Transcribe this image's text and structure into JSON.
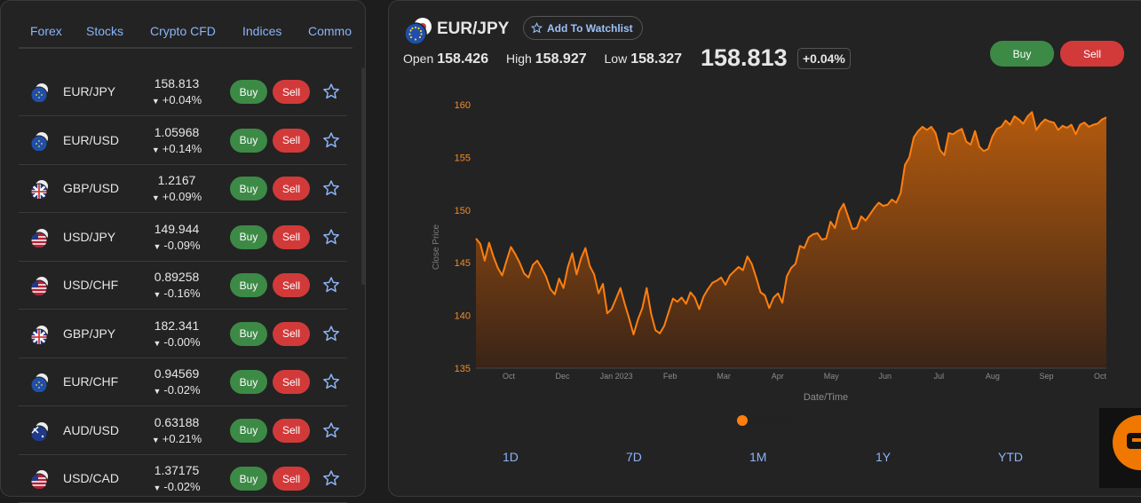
{
  "tabs": [
    "Forex",
    "Stocks",
    "Crypto CFD",
    "Indices",
    "Commo"
  ],
  "instruments": [
    {
      "symbol": "EUR/JPY",
      "price": "158.813",
      "change": "+0.04%",
      "dir": "up",
      "flag": "eu"
    },
    {
      "symbol": "EUR/USD",
      "price": "1.05968",
      "change": "+0.14%",
      "dir": "up",
      "flag": "eu"
    },
    {
      "symbol": "GBP/USD",
      "price": "1.2167",
      "change": "+0.09%",
      "dir": "up",
      "flag": "gb"
    },
    {
      "symbol": "USD/JPY",
      "price": "149.944",
      "change": "-0.09%",
      "dir": "down",
      "flag": "us"
    },
    {
      "symbol": "USD/CHF",
      "price": "0.89258",
      "change": "-0.16%",
      "dir": "down",
      "flag": "us"
    },
    {
      "symbol": "GBP/JPY",
      "price": "182.341",
      "change": "-0.00%",
      "dir": "down",
      "flag": "gb"
    },
    {
      "symbol": "EUR/CHF",
      "price": "0.94569",
      "change": "-0.02%",
      "dir": "down",
      "flag": "eu"
    },
    {
      "symbol": "AUD/USD",
      "price": "0.63188",
      "change": "+0.21%",
      "dir": "up",
      "flag": "au"
    },
    {
      "symbol": "USD/CAD",
      "price": "1.37175",
      "change": "-0.02%",
      "dir": "down",
      "flag": "us"
    }
  ],
  "buttons": {
    "buy": "Buy",
    "sell": "Sell"
  },
  "detail": {
    "pair": "EUR/JPY",
    "watchlist_label": "Add To Watchlist",
    "open_label": "Open",
    "open": "158.426",
    "high_label": "High",
    "high": "158.927",
    "low_label": "Low",
    "low": "158.327",
    "last_price": "158.813",
    "change": "+0.04%",
    "buy_label": "Buy",
    "sell_label": "Sell"
  },
  "range_tabs": [
    "1D",
    "7D",
    "1M",
    "1Y",
    "YTD"
  ],
  "colors": {
    "accent": "#8ab4f8",
    "buy": "#3c8a46",
    "sell": "#d23a3a",
    "series": "#ff7f0e"
  },
  "chart_data": {
    "type": "area",
    "ylabel": "Close Price",
    "xlabel": "Date/Time",
    "legend": "EUR/JPY",
    "ylim": [
      135,
      160
    ],
    "y_ticks": [
      160,
      155,
      150,
      145,
      140,
      135
    ],
    "x_ticks": [
      "Oct",
      "Dec",
      "Jan 2023",
      "Feb",
      "Mar",
      "Apr",
      "May",
      "Jun",
      "Jul",
      "Aug",
      "Sep",
      "Oct"
    ],
    "values": [
      147.3,
      146.8,
      145.2,
      146.9,
      145.6,
      144.5,
      143.8,
      145.2,
      146.5,
      145.8,
      145.0,
      144.0,
      143.6,
      144.8,
      145.2,
      144.5,
      143.7,
      142.5,
      142.0,
      143.5,
      142.6,
      144.6,
      145.9,
      143.9,
      145.4,
      146.4,
      144.7,
      143.9,
      142.1,
      143.0,
      140.2,
      140.6,
      141.6,
      142.6,
      141.1,
      139.7,
      138.2,
      139.6,
      140.7,
      142.6,
      140.2,
      138.6,
      138.3,
      139.0,
      140.3,
      141.6,
      141.3,
      141.7,
      141.1,
      142.2,
      141.7,
      140.6,
      141.8,
      142.5,
      143.1,
      143.3,
      143.6,
      142.9,
      143.8,
      144.2,
      144.6,
      144.3,
      145.6,
      144.9,
      143.6,
      142.2,
      141.9,
      140.7,
      141.7,
      142.1,
      141.2,
      143.7,
      144.5,
      144.9,
      146.6,
      146.4,
      147.4,
      147.7,
      147.8,
      147.2,
      147.3,
      148.9,
      148.3,
      149.9,
      150.6,
      149.4,
      148.2,
      148.3,
      149.4,
      149.0,
      149.6,
      150.2,
      150.7,
      150.4,
      150.5,
      151.0,
      150.7,
      151.6,
      154.3,
      155.0,
      156.9,
      157.5,
      157.9,
      157.6,
      157.9,
      157.3,
      155.7,
      155.2,
      157.3,
      157.2,
      157.5,
      157.7,
      156.5,
      156.2,
      157.5,
      156.0,
      155.6,
      155.8,
      157.0,
      157.7,
      157.9,
      158.5,
      158.1,
      158.9,
      158.6,
      158.2,
      158.9,
      159.3,
      157.6,
      158.2,
      158.6,
      158.4,
      158.3,
      157.6,
      158.0,
      157.8,
      158.1,
      157.2,
      158.1,
      158.3,
      157.9,
      158.1,
      158.2,
      158.6,
      158.8
    ]
  }
}
